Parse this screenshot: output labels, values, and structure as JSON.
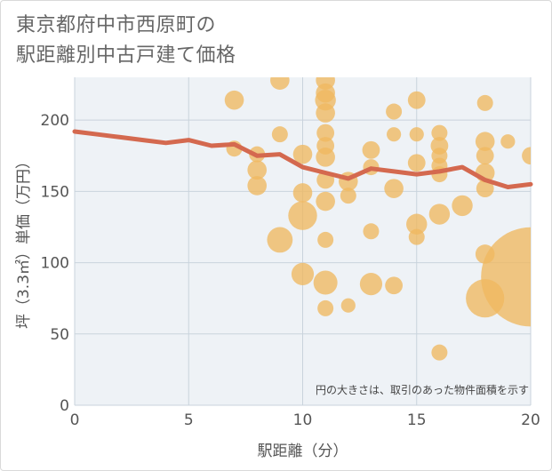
{
  "chart_data": {
    "type": "scatter",
    "title_lines": [
      "東京都府中市西原町の",
      "駅距離別中古戸建て価格"
    ],
    "xlabel": "駅距離（分）",
    "ylabel": "坪（3.3㎡）単価（万円）",
    "xlim": [
      0,
      20
    ],
    "ylim": [
      0,
      230
    ],
    "x_ticks": [
      0,
      5,
      10,
      15,
      20
    ],
    "y_ticks": [
      0,
      50,
      100,
      150,
      200
    ],
    "note": "円の大きさは、取引のあった物件面積を示す",
    "colors": {
      "bubble": "#f0b860",
      "line": "#d4694f",
      "grid": "#c9d3dc",
      "plot_bg": "#eef2f6"
    },
    "bubbles": [
      {
        "x": 7,
        "y": 214,
        "s": 1.2
      },
      {
        "x": 7,
        "y": 180,
        "s": 1.0
      },
      {
        "x": 8,
        "y": 176,
        "s": 1.0
      },
      {
        "x": 8,
        "y": 165,
        "s": 1.2
      },
      {
        "x": 8,
        "y": 154,
        "s": 1.2
      },
      {
        "x": 9,
        "y": 228,
        "s": 1.2
      },
      {
        "x": 9,
        "y": 190,
        "s": 1.0
      },
      {
        "x": 9,
        "y": 116,
        "s": 1.6
      },
      {
        "x": 10,
        "y": 176,
        "s": 1.2
      },
      {
        "x": 10,
        "y": 149,
        "s": 1.2
      },
      {
        "x": 10,
        "y": 133,
        "s": 1.8
      },
      {
        "x": 10,
        "y": 92,
        "s": 1.4
      },
      {
        "x": 11,
        "y": 228,
        "s": 1.2
      },
      {
        "x": 11,
        "y": 219,
        "s": 1.2
      },
      {
        "x": 11,
        "y": 214,
        "s": 1.3
      },
      {
        "x": 11,
        "y": 205,
        "s": 1.2
      },
      {
        "x": 11,
        "y": 191,
        "s": 1.1
      },
      {
        "x": 11,
        "y": 182,
        "s": 1.1
      },
      {
        "x": 11,
        "y": 174,
        "s": 1.2
      },
      {
        "x": 11,
        "y": 158,
        "s": 1.1
      },
      {
        "x": 11,
        "y": 143,
        "s": 1.2
      },
      {
        "x": 11,
        "y": 116,
        "s": 1.0
      },
      {
        "x": 11,
        "y": 86,
        "s": 1.5
      },
      {
        "x": 11,
        "y": 68,
        "s": 1.0
      },
      {
        "x": 12,
        "y": 157,
        "s": 1.2
      },
      {
        "x": 12,
        "y": 147,
        "s": 1.0
      },
      {
        "x": 12,
        "y": 70,
        "s": 0.9
      },
      {
        "x": 13,
        "y": 179,
        "s": 1.1
      },
      {
        "x": 13,
        "y": 167,
        "s": 1.0
      },
      {
        "x": 13,
        "y": 122,
        "s": 1.0
      },
      {
        "x": 13,
        "y": 85,
        "s": 1.4
      },
      {
        "x": 14,
        "y": 206,
        "s": 1.0
      },
      {
        "x": 14,
        "y": 190,
        "s": 0.9
      },
      {
        "x": 14,
        "y": 152,
        "s": 1.2
      },
      {
        "x": 14,
        "y": 84,
        "s": 1.1
      },
      {
        "x": 15,
        "y": 214,
        "s": 1.1
      },
      {
        "x": 15,
        "y": 190,
        "s": 0.9
      },
      {
        "x": 15,
        "y": 170,
        "s": 1.1
      },
      {
        "x": 15,
        "y": 127,
        "s": 1.3
      },
      {
        "x": 15,
        "y": 118,
        "s": 1.0
      },
      {
        "x": 16,
        "y": 191,
        "s": 1.0
      },
      {
        "x": 16,
        "y": 182,
        "s": 1.1
      },
      {
        "x": 16,
        "y": 175,
        "s": 1.0
      },
      {
        "x": 16,
        "y": 168,
        "s": 1.0
      },
      {
        "x": 16,
        "y": 162,
        "s": 1.0
      },
      {
        "x": 16,
        "y": 134,
        "s": 1.3
      },
      {
        "x": 16,
        "y": 37,
        "s": 1.0
      },
      {
        "x": 17,
        "y": 140,
        "s": 1.3
      },
      {
        "x": 18,
        "y": 212,
        "s": 1.0
      },
      {
        "x": 18,
        "y": 185,
        "s": 1.2
      },
      {
        "x": 18,
        "y": 175,
        "s": 1.1
      },
      {
        "x": 18,
        "y": 163,
        "s": 1.2
      },
      {
        "x": 18,
        "y": 152,
        "s": 1.1
      },
      {
        "x": 18,
        "y": 106,
        "s": 1.2
      },
      {
        "x": 18,
        "y": 75,
        "s": 2.4
      },
      {
        "x": 19,
        "y": 185,
        "s": 0.9
      },
      {
        "x": 20,
        "y": 175,
        "s": 1.1
      },
      {
        "x": 20,
        "y": 90,
        "s": 6.2
      }
    ],
    "line": {
      "x": [
        0,
        1,
        2,
        3,
        4,
        5,
        6,
        7,
        8,
        9,
        10,
        11,
        12,
        13,
        14,
        15,
        16,
        17,
        18,
        19,
        20
      ],
      "y": [
        192,
        190,
        188,
        186,
        184,
        186,
        182,
        183,
        175,
        176,
        167,
        163,
        159,
        166,
        164,
        162,
        164,
        167,
        158,
        153,
        155
      ]
    }
  }
}
